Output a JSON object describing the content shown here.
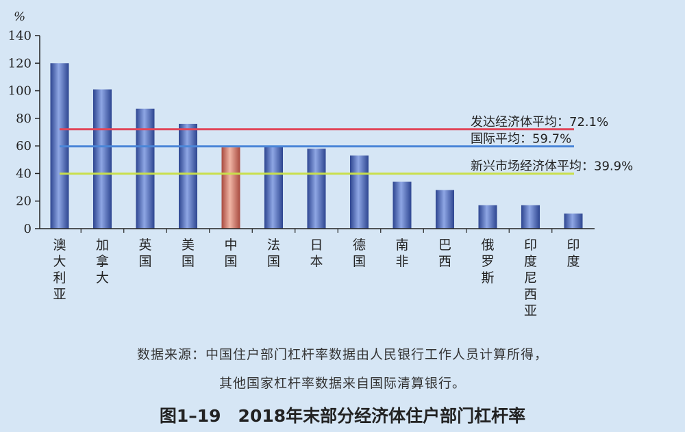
{
  "chart_data": {
    "type": "bar",
    "ylabel": "%",
    "ylim": [
      0,
      140
    ],
    "yticks": [
      0,
      20,
      40,
      60,
      80,
      100,
      120,
      140
    ],
    "categories": [
      "澳大利亚",
      "加拿大",
      "英国",
      "美国",
      "中国",
      "法国",
      "日本",
      "德国",
      "南非",
      "巴西",
      "俄罗斯",
      "印度尼西亚",
      "印度"
    ],
    "values": [
      120,
      101,
      87,
      76,
      59,
      60,
      58,
      53,
      34,
      28,
      17,
      17,
      11
    ],
    "highlight_category": "中国",
    "bar_color": "#4a66b8",
    "highlight_color": "#c8685a",
    "reference_lines": [
      {
        "label": "发达经济体平均：72.1%",
        "value": 72.1,
        "color": "#e0475a"
      },
      {
        "label": "国际平均：59.7%",
        "value": 59.7,
        "color": "#4b86d8"
      },
      {
        "label": "新兴市场经济体平均：39.9%",
        "value": 39.9,
        "color": "#c9df4a"
      }
    ],
    "grid": false
  },
  "source_line1": "数据来源：中国住户部门杠杆率数据由人民银行工作人员计算所得，",
  "source_line2": "其他国家杠杆率数据来自国际清算银行。",
  "caption": "图1–19　2018年末部分经济体住户部门杠杆率"
}
